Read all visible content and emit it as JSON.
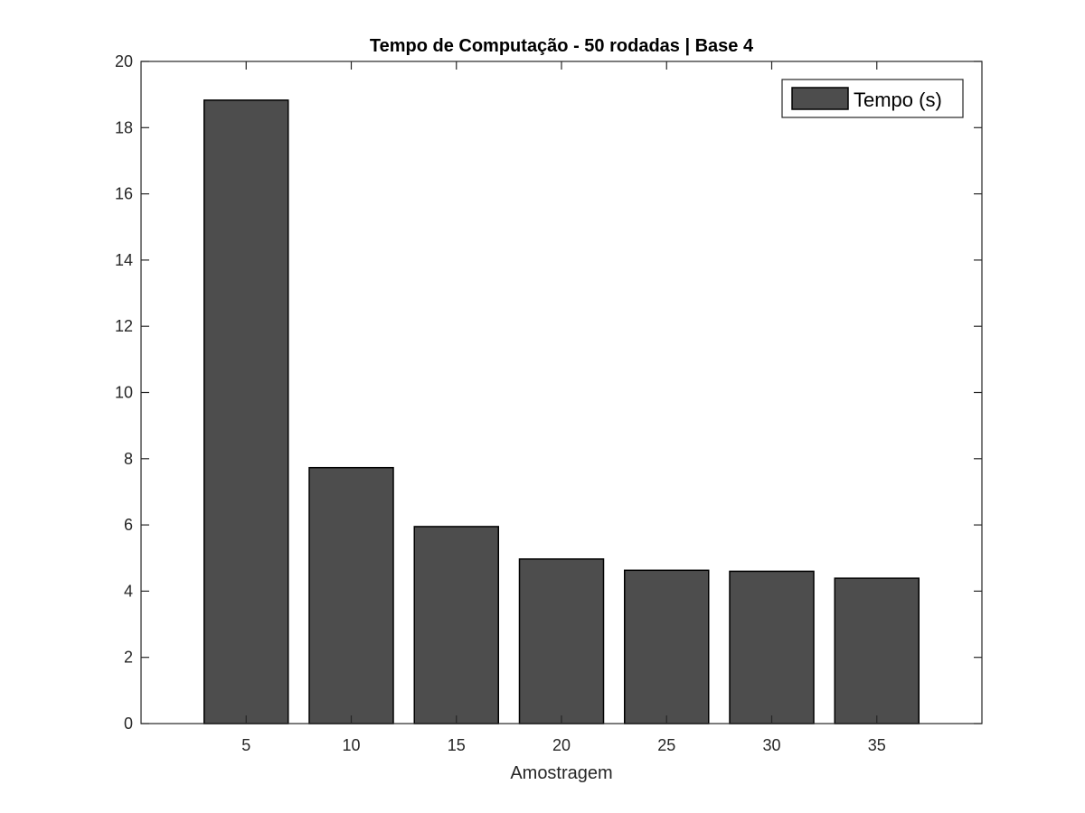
{
  "chart_data": {
    "type": "bar",
    "title": "Tempo de Computação - 50 rodadas | Base 4",
    "xlabel": "Amostragem",
    "ylabel": "",
    "categories": [
      "5",
      "10",
      "15",
      "20",
      "25",
      "30",
      "35"
    ],
    "series": [
      {
        "name": "Tempo (s)",
        "values": [
          18.83,
          7.73,
          5.95,
          4.97,
          4.63,
          4.6,
          4.39
        ],
        "color": "#4d4d4d"
      }
    ],
    "ylim": [
      0,
      20
    ],
    "yticks": [
      "0",
      "2",
      "4",
      "6",
      "8",
      "10",
      "12",
      "14",
      "16",
      "18",
      "20"
    ],
    "grid": false,
    "legend_position": "top-right"
  }
}
